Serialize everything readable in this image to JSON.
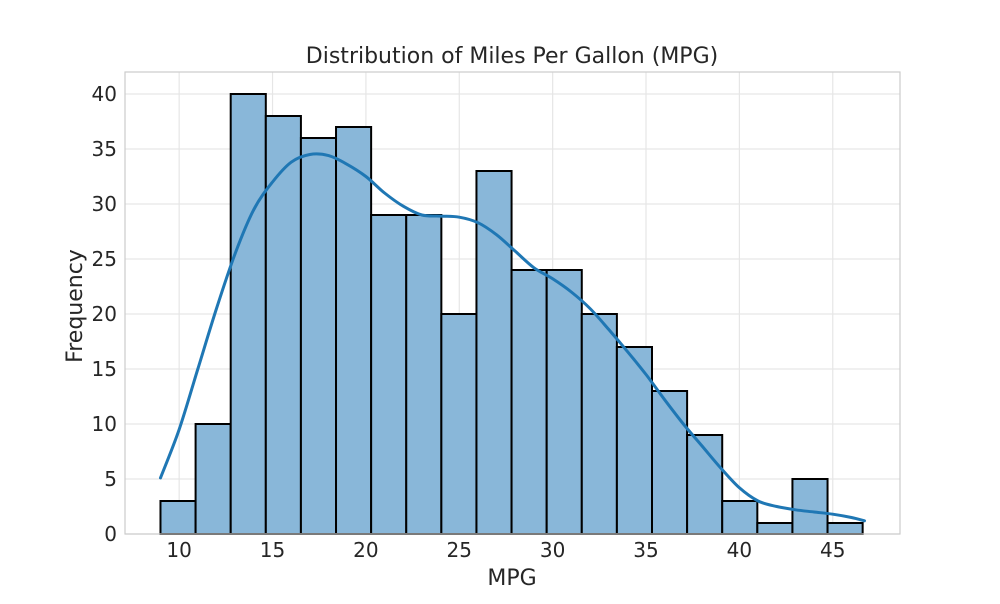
{
  "chart_data": {
    "type": "bar",
    "title": "Distribution of Miles Per Gallon (MPG)",
    "xlabel": "MPG",
    "ylabel": "Frequency",
    "xlim": [
      7.1,
      48.6
    ],
    "ylim": [
      0,
      42
    ],
    "xticks": [
      10,
      15,
      20,
      25,
      30,
      35,
      40,
      45
    ],
    "yticks": [
      0,
      5,
      10,
      15,
      20,
      25,
      30,
      35,
      40
    ],
    "grid": true,
    "bins": [
      {
        "start": 9.0,
        "end": 10.88,
        "count": 3
      },
      {
        "start": 10.88,
        "end": 12.76,
        "count": 10
      },
      {
        "start": 12.76,
        "end": 14.64,
        "count": 40
      },
      {
        "start": 14.64,
        "end": 16.52,
        "count": 38
      },
      {
        "start": 16.52,
        "end": 18.4,
        "count": 36
      },
      {
        "start": 18.4,
        "end": 20.28,
        "count": 37
      },
      {
        "start": 20.28,
        "end": 22.16,
        "count": 29
      },
      {
        "start": 22.16,
        "end": 24.04,
        "count": 29
      },
      {
        "start": 24.04,
        "end": 25.92,
        "count": 20
      },
      {
        "start": 25.92,
        "end": 27.8,
        "count": 33
      },
      {
        "start": 27.8,
        "end": 29.68,
        "count": 24
      },
      {
        "start": 29.68,
        "end": 31.56,
        "count": 24
      },
      {
        "start": 31.56,
        "end": 33.44,
        "count": 20
      },
      {
        "start": 33.44,
        "end": 35.32,
        "count": 17
      },
      {
        "start": 35.32,
        "end": 37.2,
        "count": 13
      },
      {
        "start": 37.2,
        "end": 39.08,
        "count": 9
      },
      {
        "start": 39.08,
        "end": 40.96,
        "count": 3
      },
      {
        "start": 40.96,
        "end": 42.84,
        "count": 1
      },
      {
        "start": 42.84,
        "end": 44.72,
        "count": 5
      },
      {
        "start": 44.72,
        "end": 46.6,
        "count": 1
      }
    ],
    "kde_curve": [
      [
        9.0,
        5.1
      ],
      [
        10.0,
        9.5
      ],
      [
        11.0,
        15.0
      ],
      [
        12.0,
        20.5
      ],
      [
        13.0,
        25.5
      ],
      [
        14.0,
        29.5
      ],
      [
        15.0,
        32.0
      ],
      [
        16.0,
        33.8
      ],
      [
        17.0,
        34.5
      ],
      [
        18.0,
        34.4
      ],
      [
        19.0,
        33.6
      ],
      [
        20.0,
        32.5
      ],
      [
        21.0,
        31.0
      ],
      [
        22.0,
        29.8
      ],
      [
        23.0,
        29.0
      ],
      [
        24.0,
        28.9
      ],
      [
        25.0,
        28.8
      ],
      [
        26.0,
        28.3
      ],
      [
        27.0,
        27.2
      ],
      [
        28.0,
        25.7
      ],
      [
        29.0,
        24.2
      ],
      [
        30.0,
        23.2
      ],
      [
        31.0,
        22.0
      ],
      [
        32.0,
        20.5
      ],
      [
        33.0,
        18.6
      ],
      [
        34.0,
        16.6
      ],
      [
        35.0,
        14.5
      ],
      [
        36.0,
        12.2
      ],
      [
        37.0,
        10.0
      ],
      [
        38.0,
        8.0
      ],
      [
        39.0,
        6.0
      ],
      [
        40.0,
        4.2
      ],
      [
        41.0,
        3.0
      ],
      [
        42.0,
        2.5
      ],
      [
        43.0,
        2.2
      ],
      [
        44.0,
        2.0
      ],
      [
        45.0,
        1.8
      ],
      [
        46.0,
        1.5
      ],
      [
        46.7,
        1.2
      ]
    ],
    "colors": {
      "bar_fill": "#89b7d9",
      "bar_edge": "#000000",
      "kde_line": "#1f77b4",
      "grid": "#e6e6e6",
      "frame": "#cccccc"
    }
  }
}
